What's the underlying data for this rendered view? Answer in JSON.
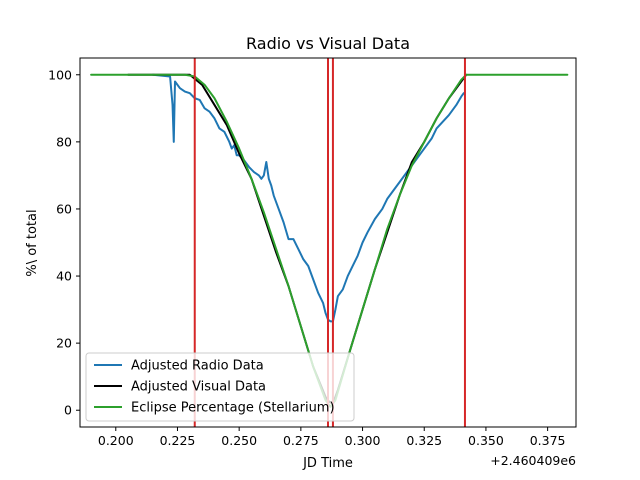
{
  "chart_data": {
    "type": "line",
    "title": "Radio vs Visual Data",
    "xlabel": "JD Time",
    "ylabel": "%\\ of total",
    "x_offset_label": "+2.460409e6",
    "xlim": [
      0.1855,
      0.3865
    ],
    "ylim": [
      -5,
      105
    ],
    "x_ticks": [
      0.2,
      0.225,
      0.25,
      0.275,
      0.3,
      0.325,
      0.35,
      0.375
    ],
    "x_tick_labels": [
      "0.200",
      "0.225",
      "0.250",
      "0.275",
      "0.300",
      "0.325",
      "0.350",
      "0.375"
    ],
    "y_ticks": [
      0,
      20,
      40,
      60,
      80,
      100
    ],
    "y_tick_labels": [
      "0",
      "20",
      "40",
      "60",
      "80",
      "100"
    ],
    "grid": false,
    "legend_position": "lower-left",
    "vertical_lines": {
      "color": "#d62728",
      "x": [
        0.232,
        0.286,
        0.288,
        0.3415
      ]
    },
    "series": [
      {
        "name": "Adjusted Radio Data",
        "color": "#1f77b4",
        "x": [
          0.215,
          0.222,
          0.223,
          0.2235,
          0.224,
          0.226,
          0.228,
          0.23,
          0.232,
          0.234,
          0.236,
          0.238,
          0.24,
          0.242,
          0.244,
          0.246,
          0.247,
          0.248,
          0.249,
          0.25,
          0.252,
          0.254,
          0.256,
          0.258,
          0.259,
          0.26,
          0.261,
          0.262,
          0.263,
          0.264,
          0.266,
          0.268,
          0.27,
          0.272,
          0.274,
          0.276,
          0.278,
          0.28,
          0.282,
          0.284,
          0.285,
          0.286,
          0.287,
          0.288,
          0.289,
          0.29,
          0.292,
          0.294,
          0.296,
          0.298,
          0.3,
          0.302,
          0.305,
          0.308,
          0.31,
          0.315,
          0.32,
          0.325,
          0.328,
          0.33,
          0.335,
          0.338,
          0.34,
          0.341
        ],
        "values": [
          100,
          99.5,
          91,
          80,
          98,
          96,
          95,
          94.5,
          93,
          92.5,
          90,
          89,
          87,
          84,
          83,
          80,
          78,
          79,
          76,
          76,
          74.5,
          72.5,
          71,
          70,
          69,
          70,
          74,
          69,
          67,
          64,
          60,
          56,
          51,
          51,
          48,
          45,
          43,
          39,
          35,
          32,
          29,
          27,
          26.5,
          26.5,
          30,
          34,
          36,
          40,
          43,
          46,
          50,
          53,
          57,
          60,
          63,
          68,
          73,
          78,
          81,
          84,
          88,
          91,
          93.5,
          94.5
        ]
      },
      {
        "name": "Adjusted Visual Data",
        "color": "#000000",
        "x": [
          0.205,
          0.21,
          0.215,
          0.22,
          0.225,
          0.23,
          0.235,
          0.24,
          0.245,
          0.25,
          0.255,
          0.26,
          0.265,
          0.27,
          0.275,
          0.28,
          0.285,
          0.2865,
          0.288,
          0.29,
          0.295,
          0.3,
          0.305,
          0.31,
          0.315,
          0.32,
          0.325,
          0.33,
          0.335,
          0.34,
          0.342
        ],
        "values": [
          100,
          100,
          100,
          100,
          100,
          100,
          97,
          91,
          85,
          76.5,
          69,
          58,
          47,
          37,
          25,
          13,
          4,
          2.5,
          2,
          6,
          18,
          30,
          42,
          53,
          64,
          74,
          80,
          87,
          93,
          98,
          100
        ]
      },
      {
        "name": "Eclipse Percentage (Stellarium)",
        "color": "#2ca02c",
        "x": [
          0.19,
          0.2,
          0.21,
          0.22,
          0.228,
          0.232,
          0.236,
          0.24,
          0.245,
          0.25,
          0.255,
          0.26,
          0.265,
          0.27,
          0.275,
          0.28,
          0.285,
          0.287,
          0.289,
          0.295,
          0.3,
          0.305,
          0.31,
          0.315,
          0.32,
          0.325,
          0.33,
          0.335,
          0.34,
          0.342,
          0.35,
          0.36,
          0.37,
          0.383
        ],
        "values": [
          100,
          100,
          100,
          100,
          100,
          99.5,
          97,
          93,
          86,
          78,
          69,
          59,
          48,
          37,
          25,
          13,
          3,
          1,
          3,
          18,
          30,
          42,
          54,
          64,
          73,
          80,
          87,
          93,
          98.5,
          100,
          100,
          100,
          100,
          100
        ]
      }
    ]
  }
}
